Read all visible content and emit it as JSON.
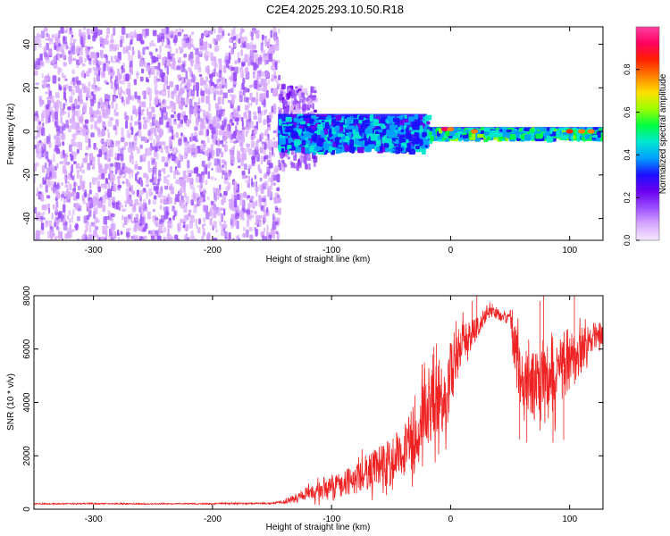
{
  "figure": {
    "title": "C2E4.2025.293.10.50.R18"
  },
  "colors": {
    "axis": "#000000",
    "snr_line": "#ee2222",
    "colormap": [
      "#f5e8ff",
      "#d7a8ff",
      "#9a4dff",
      "#6a00f0",
      "#1a10ff",
      "#00a0ff",
      "#00e8d0",
      "#00ff40",
      "#9cff00",
      "#ffe000",
      "#ff8000",
      "#ff2000",
      "#ff0060",
      "#ff40a0"
    ]
  },
  "chart_data": [
    {
      "id": "spectrogram",
      "type": "heatmap",
      "xlabel": "Height of straight line (km)",
      "ylabel": "Frequency (Hz)",
      "xlim": [
        -350,
        128
      ],
      "ylim": [
        -50,
        48
      ],
      "xticks": [
        -300,
        -200,
        -100,
        0,
        100
      ],
      "xtick_labels": [
        "-300",
        "-200",
        "-100",
        "0",
        "100"
      ],
      "yticks": [
        -40,
        -20,
        0,
        20,
        40
      ],
      "ytick_labels": [
        "-40",
        "-20",
        "0",
        "20",
        "40"
      ],
      "grid": false,
      "colorbar": {
        "label": "Normalized spectral amplitude",
        "range": [
          0,
          1
        ],
        "ticks": [
          0.0,
          0.2,
          0.4,
          0.6,
          0.8
        ],
        "tick_labels": [
          "0.0",
          "0.2",
          "0.4",
          "0.6",
          "0.8"
        ]
      },
      "regions": [
        {
          "x_range": [
            -350,
            -145
          ],
          "freq_range": [
            -50,
            48
          ],
          "amplitude": 0.1,
          "pattern": "broadband noise"
        },
        {
          "x_range": [
            -145,
            -115
          ],
          "freq_range": [
            -15,
            22
          ],
          "amplitude": 0.15,
          "pattern": "noise edge"
        },
        {
          "x_range": [
            -145,
            -20
          ],
          "freq_range": [
            -8,
            8
          ],
          "amplitude": 0.4,
          "pattern": "carrier"
        },
        {
          "x_range": [
            -20,
            128
          ],
          "freq_range": [
            -2,
            2
          ],
          "amplitude": 0.5,
          "pattern": "narrow carrier"
        }
      ],
      "hotspots": [
        {
          "x": -5,
          "freq": 1,
          "amplitude": 0.9
        },
        {
          "x": 0,
          "freq": 1,
          "amplitude": 0.8
        },
        {
          "x": 20,
          "freq": 0,
          "amplitude": 0.75
        },
        {
          "x": 100,
          "freq": 0,
          "amplitude": 0.85
        },
        {
          "x": 110,
          "freq": 0,
          "amplitude": 0.8
        },
        {
          "x": 118,
          "freq": 0,
          "amplitude": 0.8
        }
      ]
    },
    {
      "id": "snr",
      "type": "line",
      "xlabel": "Height of straight line (km)",
      "ylabel": "SNR (10 * v/v)",
      "xlim": [
        -350,
        128
      ],
      "ylim": [
        0,
        8000
      ],
      "xticks": [
        -300,
        -200,
        -100,
        0,
        100
      ],
      "xtick_labels": [
        "-300",
        "-200",
        "-100",
        "0",
        "100"
      ],
      "yticks": [
        0,
        2000,
        4000,
        6000,
        8000
      ],
      "ytick_labels": [
        "0",
        "2000",
        "4000",
        "6000",
        "8000"
      ],
      "grid": false,
      "series": [
        {
          "x": [
            -350,
            -300,
            -250,
            -200,
            -150,
            -140,
            -130,
            -120,
            -110,
            -100,
            -90,
            -80,
            -70,
            -60,
            -50,
            -40,
            -30,
            -20,
            -10,
            -5,
            0,
            5,
            10,
            15,
            20,
            25,
            30,
            40,
            50,
            55,
            60,
            70,
            80,
            90,
            100,
            110,
            120,
            128
          ],
          "y": [
            200,
            210,
            200,
            210,
            220,
            280,
            400,
            550,
            700,
            800,
            1000,
            1100,
            1400,
            1600,
            1700,
            2200,
            2800,
            3800,
            4200,
            4000,
            5100,
            5700,
            6400,
            6500,
            6700,
            6900,
            7400,
            7300,
            7200,
            5700,
            5000,
            4600,
            4700,
            5000,
            5500,
            5900,
            6500,
            6600
          ],
          "noise": [
            20,
            25,
            22,
            22,
            30,
            80,
            150,
            250,
            350,
            450,
            500,
            550,
            700,
            800,
            900,
            1000,
            1200,
            1400,
            1500,
            1300,
            1400,
            900,
            700,
            600,
            500,
            400,
            300,
            200,
            300,
            1100,
            1200,
            1300,
            1400,
            1300,
            1100,
            900,
            500,
            400
          ],
          "spikes": [
            {
              "x": -22,
              "y": 5500
            },
            {
              "x": -15,
              "y": 5800
            },
            {
              "x": -12,
              "y": 6200
            },
            {
              "x": 18,
              "y": 7800
            },
            {
              "x": 22,
              "y": 8000
            },
            {
              "x": 35,
              "y": 7700
            },
            {
              "x": 58,
              "y": 2600
            },
            {
              "x": 64,
              "y": 2500
            },
            {
              "x": 75,
              "y": 7800
            },
            {
              "x": 78,
              "y": 8000
            },
            {
              "x": 86,
              "y": 2500
            },
            {
              "x": 95,
              "y": 2600
            },
            {
              "x": 104,
              "y": 8000
            }
          ]
        }
      ]
    }
  ]
}
